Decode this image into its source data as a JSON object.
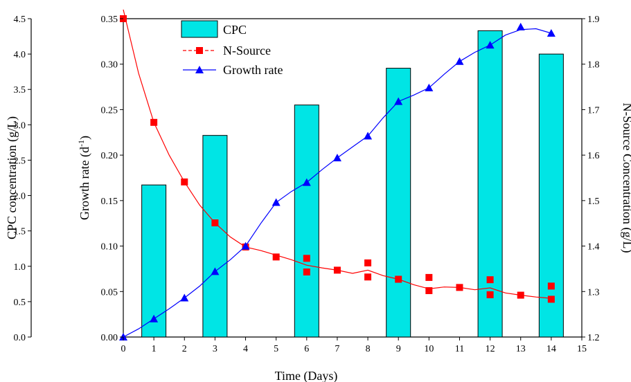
{
  "chart_data": {
    "type": "bar",
    "xlabel": "Time (Days)",
    "xlim": [
      0,
      15
    ],
    "x_ticks": [
      "0",
      "1",
      "2",
      "3",
      "4",
      "5",
      "6",
      "7",
      "8",
      "9",
      "10",
      "11",
      "12",
      "13",
      "14",
      "15"
    ],
    "legend_position": "top-left",
    "grid": false,
    "axes": {
      "cpc": {
        "label": "CPC concentration (g/L)",
        "lim": [
          0,
          4.5
        ],
        "ticks": [
          "0.0",
          "0.5",
          "1.0",
          "1.5",
          "2.0",
          "2.5",
          "3.0",
          "3.5",
          "4.0",
          "4.5"
        ]
      },
      "growth": {
        "label": "Growth rate (d",
        "label_sup": "-1",
        "label_end": ")",
        "lim": [
          0,
          0.35
        ],
        "ticks": [
          "0.00",
          "0.05",
          "0.10",
          "0.15",
          "0.20",
          "0.25",
          "0.30",
          "0.35"
        ]
      },
      "nsource": {
        "label": "N-Source Concentration (g/L)",
        "lim": [
          1.2,
          1.9
        ],
        "ticks": [
          "1.2",
          "1.3",
          "1.4",
          "1.5",
          "1.6",
          "1.7",
          "1.8",
          "1.9"
        ]
      }
    },
    "series": [
      {
        "name": "CPC",
        "type": "bar",
        "axis": "cpc",
        "color": "#00e5e5",
        "x": [
          1,
          3,
          6,
          9,
          12,
          14
        ],
        "values": [
          2.15,
          2.85,
          3.28,
          3.8,
          4.33,
          4.0
        ]
      },
      {
        "name": "N-Source",
        "type": "line",
        "axis": "nsource",
        "color": "#ff0000",
        "marker": "square",
        "dashed": true,
        "x": [
          0,
          1,
          2,
          3,
          4,
          5,
          6,
          6,
          7,
          8,
          8,
          9,
          10,
          10,
          11,
          12,
          12,
          13,
          14,
          14
        ],
        "values": [
          1.9,
          1.672,
          1.541,
          1.451,
          1.398,
          1.376,
          1.373,
          1.343,
          1.347,
          1.332,
          1.363,
          1.327,
          1.302,
          1.331,
          1.309,
          1.326,
          1.293,
          1.292,
          1.283,
          1.312
        ],
        "curve": [
          [
            0,
            1.92
          ],
          [
            0.5,
            1.78
          ],
          [
            1,
            1.672
          ],
          [
            1.5,
            1.6
          ],
          [
            2,
            1.541
          ],
          [
            2.5,
            1.49
          ],
          [
            3,
            1.451
          ],
          [
            3.5,
            1.42
          ],
          [
            4,
            1.398
          ],
          [
            4.5,
            1.39
          ],
          [
            5,
            1.38
          ],
          [
            5.5,
            1.37
          ],
          [
            6,
            1.358
          ],
          [
            6.5,
            1.352
          ],
          [
            7,
            1.347
          ],
          [
            7.5,
            1.34
          ],
          [
            8,
            1.347
          ],
          [
            8.5,
            1.335
          ],
          [
            9,
            1.327
          ],
          [
            9.5,
            1.315
          ],
          [
            10,
            1.306
          ],
          [
            10.5,
            1.31
          ],
          [
            11,
            1.309
          ],
          [
            11.5,
            1.304
          ],
          [
            12,
            1.308
          ],
          [
            12.5,
            1.297
          ],
          [
            13,
            1.292
          ],
          [
            13.5,
            1.288
          ],
          [
            14,
            1.285
          ]
        ]
      },
      {
        "name": "Growth rate",
        "type": "line",
        "axis": "growth",
        "color": "#0000ff",
        "marker": "triangle",
        "dashed": false,
        "x": [
          0,
          1,
          2,
          3,
          4,
          5,
          6,
          7,
          8,
          9,
          10,
          11,
          12,
          13,
          14
        ],
        "values": [
          0.0,
          0.02,
          0.043,
          0.072,
          0.1,
          0.148,
          0.17,
          0.197,
          0.221,
          0.259,
          0.274,
          0.303,
          0.321,
          0.341,
          0.334
        ],
        "curve": [
          [
            0,
            0.0
          ],
          [
            0.5,
            0.009
          ],
          [
            1,
            0.02
          ],
          [
            1.5,
            0.031
          ],
          [
            2,
            0.043
          ],
          [
            2.5,
            0.056
          ],
          [
            3,
            0.072
          ],
          [
            3.5,
            0.085
          ],
          [
            4,
            0.1
          ],
          [
            4.5,
            0.125
          ],
          [
            5,
            0.148
          ],
          [
            5.5,
            0.16
          ],
          [
            6,
            0.17
          ],
          [
            6.5,
            0.184
          ],
          [
            7,
            0.197
          ],
          [
            7.5,
            0.209
          ],
          [
            8,
            0.221
          ],
          [
            8.5,
            0.241
          ],
          [
            9,
            0.259
          ],
          [
            9.5,
            0.266
          ],
          [
            10,
            0.274
          ],
          [
            10.5,
            0.289
          ],
          [
            11,
            0.303
          ],
          [
            11.5,
            0.313
          ],
          [
            12,
            0.321
          ],
          [
            12.5,
            0.332
          ],
          [
            13,
            0.338
          ],
          [
            13.5,
            0.339
          ],
          [
            14,
            0.334
          ]
        ]
      }
    ]
  }
}
